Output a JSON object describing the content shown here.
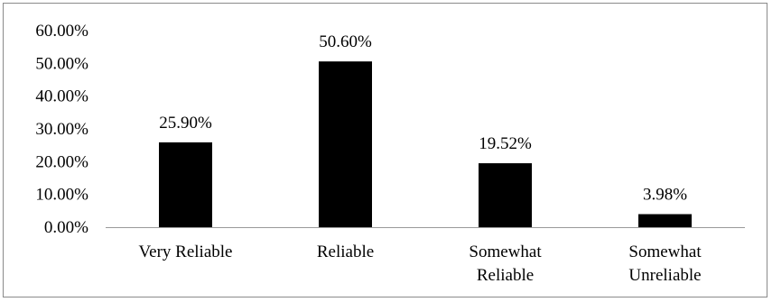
{
  "chart_data": {
    "type": "bar",
    "categories": [
      [
        "Very Reliable"
      ],
      [
        "Reliable"
      ],
      [
        "Somewhat",
        "Reliable"
      ],
      [
        "Somewhat",
        "Unreliable"
      ]
    ],
    "values": [
      25.9,
      50.6,
      19.52,
      3.98
    ],
    "data_labels": [
      "25.90%",
      "50.60%",
      "19.52%",
      "3.98%"
    ],
    "ylim": [
      0,
      60
    ],
    "yticks": [
      0,
      10,
      20,
      30,
      40,
      50,
      60
    ],
    "ytick_labels": [
      "0.00%",
      "10.00%",
      "20.00%",
      "30.00%",
      "40.00%",
      "50.00%",
      "60.00%"
    ],
    "title": "",
    "xlabel": "",
    "ylabel": "",
    "grid": false,
    "legend": "none",
    "colors": {
      "bar": "#000000",
      "axis": "#9a9a9a",
      "border": "#8a8a8a"
    }
  }
}
